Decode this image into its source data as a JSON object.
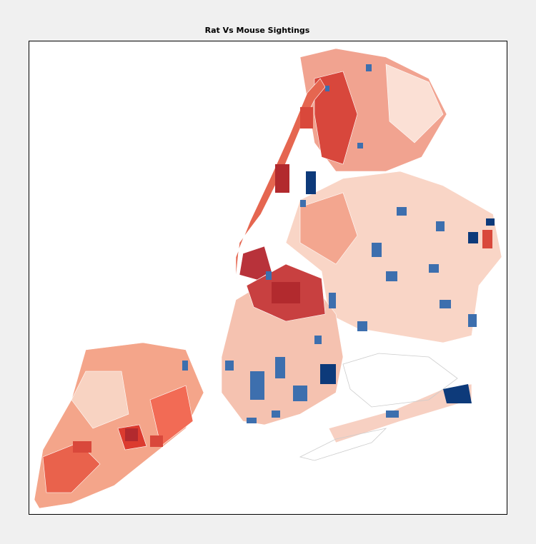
{
  "header": {
    "title": "Rat Vs Mouse Sightings"
  }
}
